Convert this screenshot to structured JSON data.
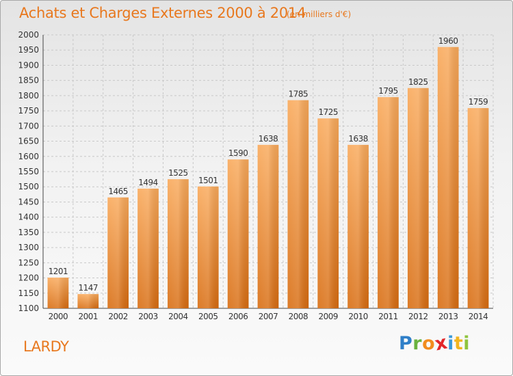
{
  "header": {
    "title": "Achats et Charges Externes 2000 à 2014",
    "subtitle": "(en milliers d'€)"
  },
  "footer": {
    "place": "LARDY",
    "logo_text": "Proxiti"
  },
  "colors": {
    "title": "#e8781e",
    "bar_top": "#f9a95a",
    "bar_bottom": "#d86c10",
    "grid": "#c8c8c8"
  },
  "chart_data": {
    "type": "bar",
    "title": "Achats et Charges Externes 2000 à 2014",
    "subtitle": "(en milliers d'€)",
    "xlabel": "",
    "ylabel": "",
    "categories": [
      "2000",
      "2001",
      "2002",
      "2003",
      "2004",
      "2005",
      "2006",
      "2007",
      "2008",
      "2009",
      "2010",
      "2011",
      "2012",
      "2013",
      "2014"
    ],
    "values": [
      1201,
      1147,
      1465,
      1494,
      1525,
      1501,
      1590,
      1638,
      1785,
      1725,
      1638,
      1795,
      1825,
      1960,
      1759
    ],
    "ylim": [
      1100,
      2000
    ],
    "yticks": [
      1100,
      1150,
      1200,
      1250,
      1300,
      1350,
      1400,
      1450,
      1500,
      1550,
      1600,
      1650,
      1700,
      1750,
      1800,
      1850,
      1900,
      1950,
      2000
    ],
    "grid": true,
    "legend": "none"
  }
}
